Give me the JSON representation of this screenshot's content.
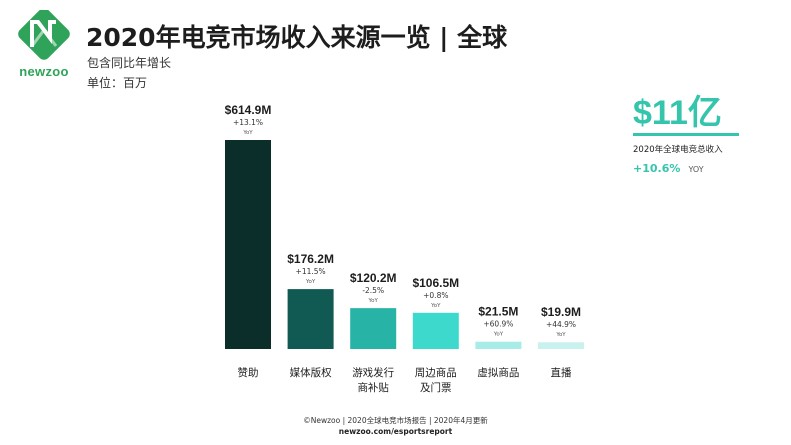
{
  "header": {
    "logo_text": "newzoo",
    "title": "2020年电竞市场收入来源一览 | 全球",
    "subtitle": "包含同比年增长",
    "unit": "单位：百万"
  },
  "total": {
    "value": "$11亿",
    "description": "2020年全球电竞总收入",
    "growth": "+10.6%",
    "growth_unit": "YOY"
  },
  "colors": {
    "accent": "#35c4ac"
  },
  "chart_data": {
    "type": "bar",
    "categories": [
      [
        "赞助"
      ],
      [
        "媒体版权"
      ],
      [
        "游戏发行",
        "商补贴"
      ],
      [
        "周边商品",
        "及门票"
      ],
      [
        "虚拟商品"
      ],
      [
        "直播"
      ]
    ],
    "values": [
      614.9,
      176.2,
      120.2,
      106.5,
      21.5,
      19.9
    ],
    "value_labels": [
      "$614.9M",
      "$176.2M",
      "$120.2M",
      "$106.5M",
      "$21.5M",
      "$19.9M"
    ],
    "growth_labels": [
      "+13.1%",
      "+11.5%",
      "-2.5%",
      "+0.8%",
      "+60.9%",
      "+44.9%"
    ],
    "growth_unit": "YoY",
    "colors": [
      "#0b2e2b",
      "#115a54",
      "#27b3a6",
      "#3dd9cd",
      "#a8ece7",
      "#c9f2ef"
    ],
    "ylim": [
      0,
      614.9
    ],
    "grid": false,
    "legend": "none"
  },
  "footer": {
    "line1": "©Newzoo | 2020全球电竞市场报告 | 2020年4月更新",
    "line2": "newzoo.com/esportsreport"
  }
}
